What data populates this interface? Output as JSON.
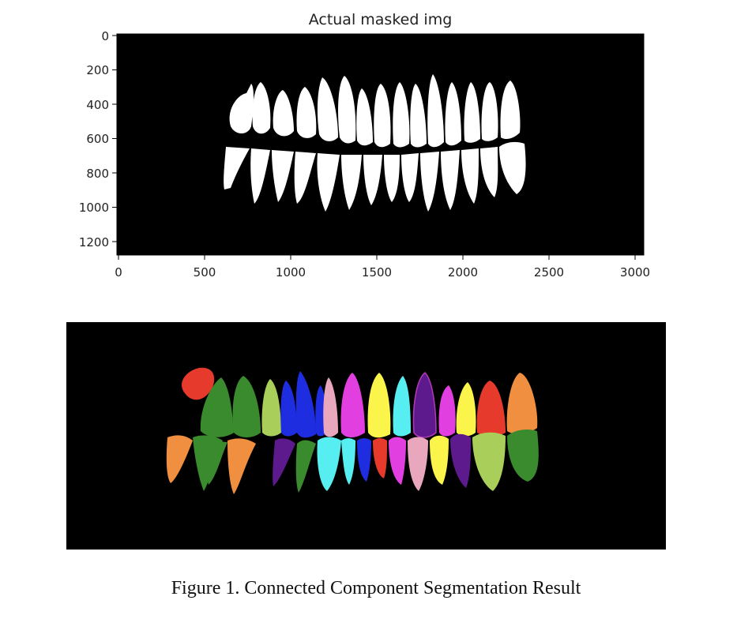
{
  "figure": {
    "caption": "Figure 1. Connected Component Segmentation Result"
  },
  "masked_plot": {
    "title": "Actual masked img",
    "x_ticks": [
      "0",
      "500",
      "1000",
      "1500",
      "2000",
      "2500",
      "3000"
    ],
    "y_ticks": [
      "0",
      "200",
      "400",
      "600",
      "800",
      "1000",
      "1200"
    ],
    "xlim": [
      0,
      3040
    ],
    "ylim": [
      1290,
      0
    ],
    "background": "#000000",
    "mask_color": "#ffffff"
  },
  "segmentation": {
    "background": "#000000",
    "component_colors": [
      "#e53a2c",
      "#3a8a2e",
      "#a9cf5a",
      "#1f2de0",
      "#e9a7bd",
      "#e23fe0",
      "#fbf44b",
      "#56eef0",
      "#5c1a8c",
      "#ef8f3f"
    ]
  }
}
